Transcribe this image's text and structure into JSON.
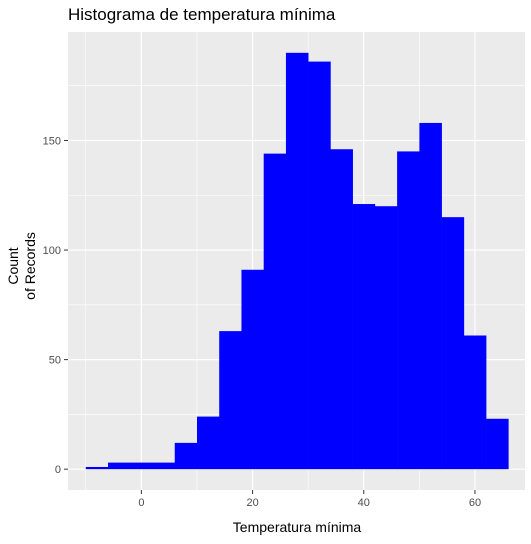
{
  "chart_data": {
    "type": "bar",
    "title": "Histograma de temperatura mínima",
    "xlabel": "Temperatura mínima",
    "ylabel": [
      "Count",
      "of Records"
    ],
    "bar_color": "#0000ff",
    "panel_background": "#ebebeb",
    "gridline_color": "#ffffff",
    "grid": true,
    "legend": "none",
    "xlim": [
      -13.2,
      69.0
    ],
    "ylim": [
      -9.5,
      199.5
    ],
    "xticks": [
      0,
      20,
      40,
      60
    ],
    "yticks": [
      0,
      50,
      100,
      150
    ],
    "xtick_labels": [
      "0",
      "20",
      "40",
      "60"
    ],
    "ytick_labels": [
      "0",
      "50",
      "100",
      "150"
    ],
    "bins": [
      {
        "x0": -10.0,
        "x1": -6.0,
        "count": 1
      },
      {
        "x0": -6.0,
        "x1": -2.0,
        "count": 3
      },
      {
        "x0": -2.0,
        "x1": 2.0,
        "count": 3
      },
      {
        "x0": 2.0,
        "x1": 6.0,
        "count": 3
      },
      {
        "x0": 6.0,
        "x1": 10.0,
        "count": 12
      },
      {
        "x0": 10.0,
        "x1": 14.0,
        "count": 24
      },
      {
        "x0": 14.0,
        "x1": 18.0,
        "count": 63
      },
      {
        "x0": 18.0,
        "x1": 22.0,
        "count": 91
      },
      {
        "x0": 22.0,
        "x1": 26.0,
        "count": 144
      },
      {
        "x0": 26.0,
        "x1": 30.0,
        "count": 190
      },
      {
        "x0": 30.0,
        "x1": 34.0,
        "count": 186
      },
      {
        "x0": 34.0,
        "x1": 38.0,
        "count": 146
      },
      {
        "x0": 38.0,
        "x1": 42.0,
        "count": 121
      },
      {
        "x0": 42.0,
        "x1": 46.0,
        "count": 120
      },
      {
        "x0": 46.0,
        "x1": 50.0,
        "count": 145
      },
      {
        "x0": 50.0,
        "x1": 54.0,
        "count": 158
      },
      {
        "x0": 54.0,
        "x1": 58.0,
        "count": 115
      },
      {
        "x0": 58.0,
        "x1": 62.0,
        "count": 61
      },
      {
        "x0": 62.0,
        "x1": 66.0,
        "count": 23
      }
    ]
  }
}
